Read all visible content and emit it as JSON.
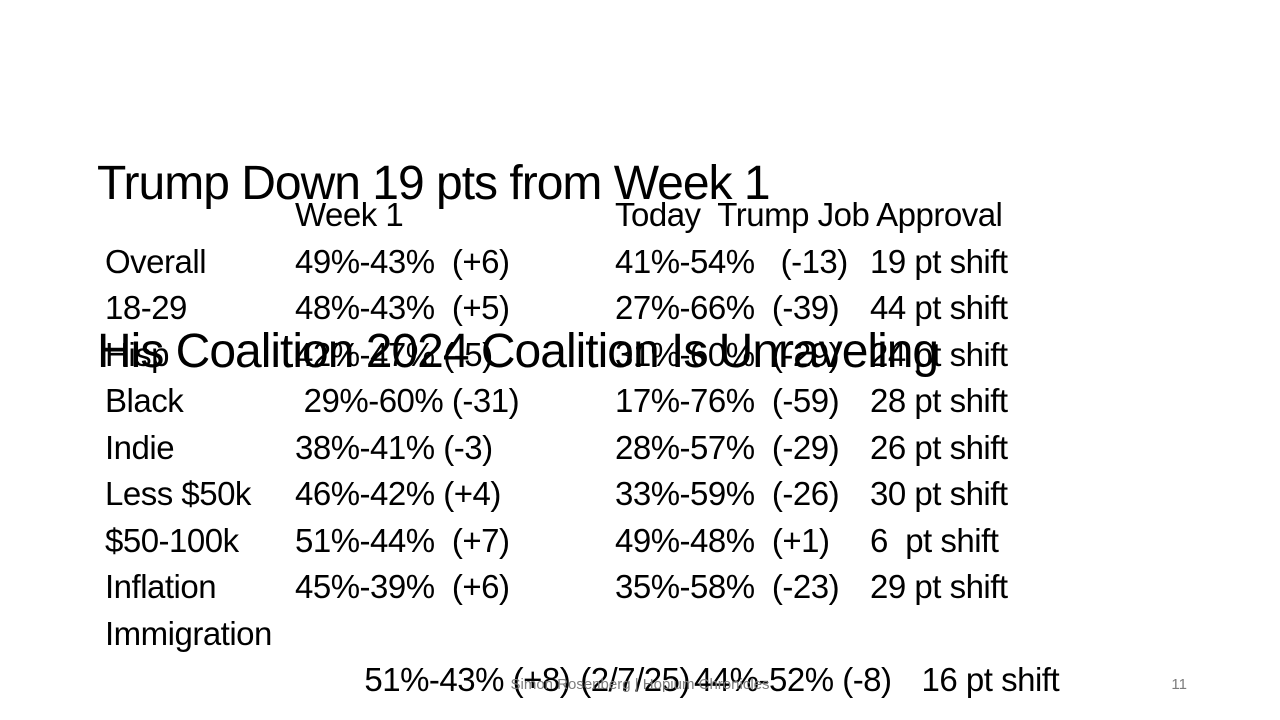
{
  "slide": {
    "title_line1": "Trump Down 19 pts from Week 1",
    "title_line2": "His Coalition 2024 Coalition Is Unraveling",
    "table": {
      "header": {
        "week1": "Week 1",
        "today": "Today  Trump Job Approval"
      },
      "rows": [
        {
          "label": "Overall",
          "week1": "49%-43%  (+6)",
          "today": "41%-54%   (-13)",
          "shift": "19 pt shift"
        },
        {
          "label": "18-29",
          "week1": "48%-43%  (+5)",
          "today": "27%-66%  (-39)",
          "shift": "44 pt shift"
        },
        {
          "label": "Hisp",
          "week1": "42%-47% (-5)",
          "today": "31%-60%  (-29)",
          "shift": "24 pt shift"
        },
        {
          "label": "Black",
          "week1": " 29%-60% (-31)",
          "today": "17%-76%  (-59)",
          "shift": "28 pt shift"
        },
        {
          "label": "Indie",
          "week1": "38%-41% (-3)",
          "today": "28%-57%  (-29)",
          "shift": "26 pt shift"
        },
        {
          "label": "Less $50k",
          "week1": "46%-42% (+4)",
          "today": "33%-59%  (-26)",
          "shift": "30 pt shift"
        },
        {
          "label": "$50-100k",
          "week1": "51%-44%  (+7)",
          "today": "49%-48%  (+1)",
          "shift": "6  pt shift"
        },
        {
          "label": "Inflation",
          "week1": "45%-39%  (+6)",
          "today": "35%-58%  (-23)",
          "shift": "29 pt shift"
        },
        {
          "label": "Immigration",
          "week1": "51%-43% (+8)",
          "date": "(2/7/25)",
          "today": "44%-52% (-8)",
          "shift": "16 pt shift"
        }
      ]
    },
    "footer": {
      "credit": "Simon Rosenberg | Hopium Chronicles",
      "slide_number": "11"
    },
    "colors": {
      "background": "#ffffff",
      "text": "#000000",
      "footer_text": "#7c7c7c"
    }
  }
}
